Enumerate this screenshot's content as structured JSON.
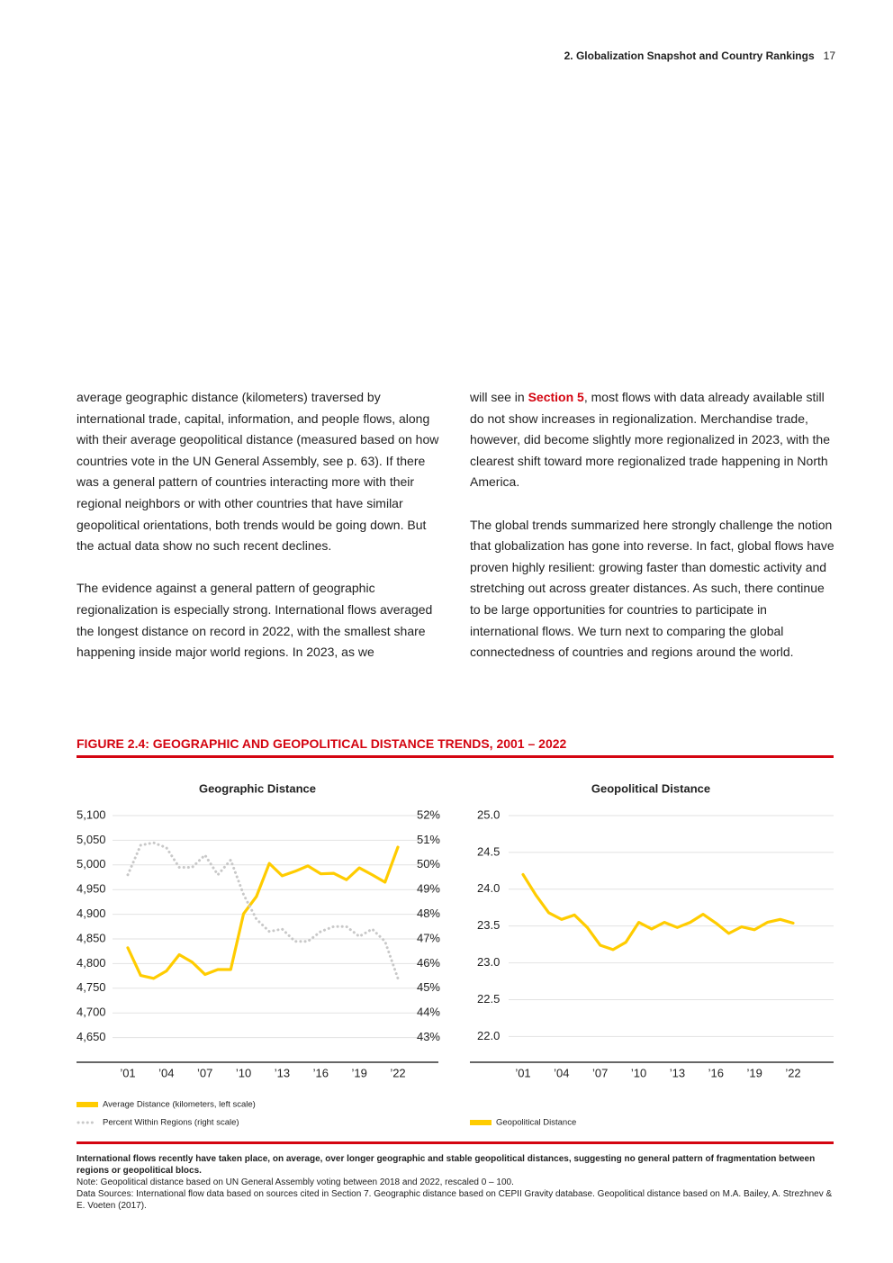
{
  "header": {
    "section": "2. Globalization Snapshot and Country Rankings",
    "page": "17"
  },
  "body": {
    "left": [
      "average geographic distance (kilometers) traversed by international trade, capital, information, and people flows, along with their average geopolitical distance (measured based on how countries vote in the UN General Assembly, see p. 63). If there was a general pattern of countries interacting more with their regional neighbors or with other countries that have similar geopolitical orientations, both trends would be going down. But the actual data show no such recent declines.",
      "The evidence against a general pattern of geographic regionalization is especially strong. International flows averaged the longest distance on record in 2022, with the smallest share happening inside major world regions. In 2023, as we"
    ],
    "right_first": {
      "before": "will see in ",
      "link": "Section 5",
      "after": ", most flows with data already available still do not show increases in regionalization. Merchandise trade, however, did become slightly more regionalized in 2023, with the clearest shift toward more regionalized trade happening in North America."
    },
    "right": [
      "The global trends summarized here strongly challenge the notion that globalization has gone into reverse. In fact, global flows have proven highly resilient: growing faster than domestic activity and stretching out across greater distances. As such, there continue to be large opportunities for countries to participate in international flows. We turn next to comparing the global connectedness of countries and regions around the world."
    ]
  },
  "figure": {
    "title": "FIGURE 2.4: GEOGRAPHIC AND GEOPOLITICAL DISTANCE TRENDS, 2001 – 2022",
    "caption": "International flows recently have taken place, on average, over longer geographic and stable geopolitical distances, suggesting no general pattern of fragmentation between regions or geopolitical blocs.",
    "note": "Note: Geopolitical distance based on UN General Assembly voting between 2018 and 2022, rescaled 0 – 100.",
    "sources": "Data Sources: International flow data based on sources cited in Section 7. Geographic distance based on CEPII Gravity database. Geopolitical distance based on M.A. Bailey, A. Strezhnev & E. Voeten (2017)."
  },
  "chart_data": [
    {
      "type": "line",
      "title": "Geographic Distance",
      "grid": true,
      "legend": "bottom",
      "categories": [
        "’01",
        null,
        null,
        "’04",
        null,
        null,
        "’07",
        null,
        null,
        "’10",
        null,
        null,
        "’13",
        null,
        null,
        "’16",
        null,
        null,
        "’19",
        null,
        null,
        "’22"
      ],
      "ylim": [
        4600,
        5100
      ],
      "yticks": [
        {
          "value": 4650,
          "label": "4,650"
        },
        {
          "value": 4700,
          "label": "4,700"
        },
        {
          "value": 4750,
          "label": "4,750"
        },
        {
          "value": 4800,
          "label": "4,800"
        },
        {
          "value": 4850,
          "label": "4,850"
        },
        {
          "value": 4900,
          "label": "4,900"
        },
        {
          "value": 4950,
          "label": "4,950"
        },
        {
          "value": 5000,
          "label": "5,000"
        },
        {
          "value": 5050,
          "label": "5,050"
        },
        {
          "value": 5100,
          "label": "5,100"
        }
      ],
      "y2lim": [
        42,
        52
      ],
      "y2ticks": [
        {
          "value": 43,
          "label": "43%"
        },
        {
          "value": 44,
          "label": "44%"
        },
        {
          "value": 45,
          "label": "45%"
        },
        {
          "value": 46,
          "label": "46%"
        },
        {
          "value": 47,
          "label": "47%"
        },
        {
          "value": 48,
          "label": "48%"
        },
        {
          "value": 49,
          "label": "49%"
        },
        {
          "value": 50,
          "label": "50%"
        },
        {
          "value": 51,
          "label": "51%"
        },
        {
          "value": 52,
          "label": "52%"
        }
      ],
      "series": [
        {
          "name": "Average Distance (kilometers, left scale)",
          "color": "#ffcc00",
          "style": "solid",
          "values": [
            4832,
            4776,
            4770,
            4785,
            4818,
            4803,
            4778,
            4788,
            4788,
            4901,
            4936,
            5003,
            4978,
            4987,
            4998,
            4982,
            4983,
            4970,
            4994,
            4980,
            4965,
            5036
          ]
        },
        {
          "name": "Percent Within Regions (right scale)",
          "color": "#c8c8c8",
          "style": "dotted",
          "axis": "y2",
          "values": [
            49.6,
            50.8,
            50.9,
            50.7,
            49.9,
            49.9,
            50.4,
            49.6,
            50.2,
            48.8,
            47.8,
            47.3,
            47.4,
            46.9,
            46.9,
            47.3,
            47.5,
            47.5,
            47.1,
            47.4,
            46.9,
            45.4
          ]
        }
      ]
    },
    {
      "type": "line",
      "title": "Geopolitical Distance",
      "grid": true,
      "legend": "bottom",
      "categories": [
        "’01",
        null,
        null,
        "’04",
        null,
        null,
        "’07",
        null,
        null,
        "’10",
        null,
        null,
        "’13",
        null,
        null,
        "’16",
        null,
        null,
        "’19",
        null,
        null,
        "’22"
      ],
      "ylim": [
        21.65,
        25
      ],
      "yticks": [
        {
          "value": 22,
          "label": "22.0"
        },
        {
          "value": 22.5,
          "label": "22.5"
        },
        {
          "value": 23,
          "label": "23.0"
        },
        {
          "value": 23.5,
          "label": "23.5"
        },
        {
          "value": 24,
          "label": "24.0"
        },
        24.5,
        {
          "value": 25,
          "label": "25.0"
        }
      ],
      "series": [
        {
          "name": "Geopolitical Distance",
          "color": "#ffcc00",
          "style": "solid",
          "values": [
            24.2,
            23.92,
            23.68,
            23.59,
            23.65,
            23.48,
            23.24,
            23.18,
            23.28,
            23.55,
            23.46,
            23.55,
            23.48,
            23.55,
            23.66,
            23.54,
            23.4,
            23.49,
            23.45,
            23.55,
            23.59,
            23.54
          ]
        }
      ]
    }
  ]
}
